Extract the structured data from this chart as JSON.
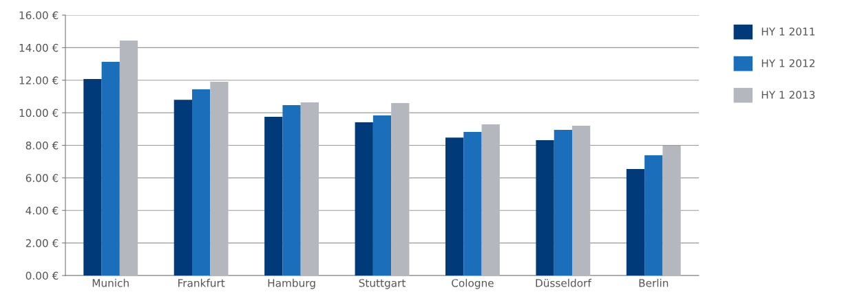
{
  "chart_data": {
    "type": "bar",
    "categories": [
      "Munich",
      "Frankfurt",
      "Hamburg",
      "Stuttgart",
      "Cologne",
      "Düsseldorf",
      "Berlin"
    ],
    "series": [
      {
        "name": "HY 1 2011",
        "color": "#003a78",
        "values": [
          12.07,
          10.8,
          9.75,
          9.41,
          8.48,
          8.32,
          6.54
        ]
      },
      {
        "name": "HY 1 2012",
        "color": "#1b6fba",
        "values": [
          13.13,
          11.44,
          10.47,
          9.84,
          8.82,
          8.95,
          7.39
        ]
      },
      {
        "name": "HY 1 2013",
        "color": "#b4b8be",
        "values": [
          14.44,
          11.9,
          10.64,
          10.6,
          9.29,
          9.2,
          7.98
        ]
      }
    ],
    "ylim": [
      0,
      16
    ],
    "yticks": [
      {
        "value": 0,
        "label": "0.00 €"
      },
      {
        "value": 2,
        "label": "2.00 €"
      },
      {
        "value": 4,
        "label": "4.00 €"
      },
      {
        "value": 6,
        "label": "6.00 €"
      },
      {
        "value": 8,
        "label": "8.00 €"
      },
      {
        "value": 10,
        "label": "10.00 €"
      },
      {
        "value": 12,
        "label": "12.00 €"
      },
      {
        "value": 14,
        "label": "14.00 €"
      },
      {
        "value": 16,
        "label": "16.00 €"
      }
    ],
    "grid": "y",
    "legend": "right"
  }
}
